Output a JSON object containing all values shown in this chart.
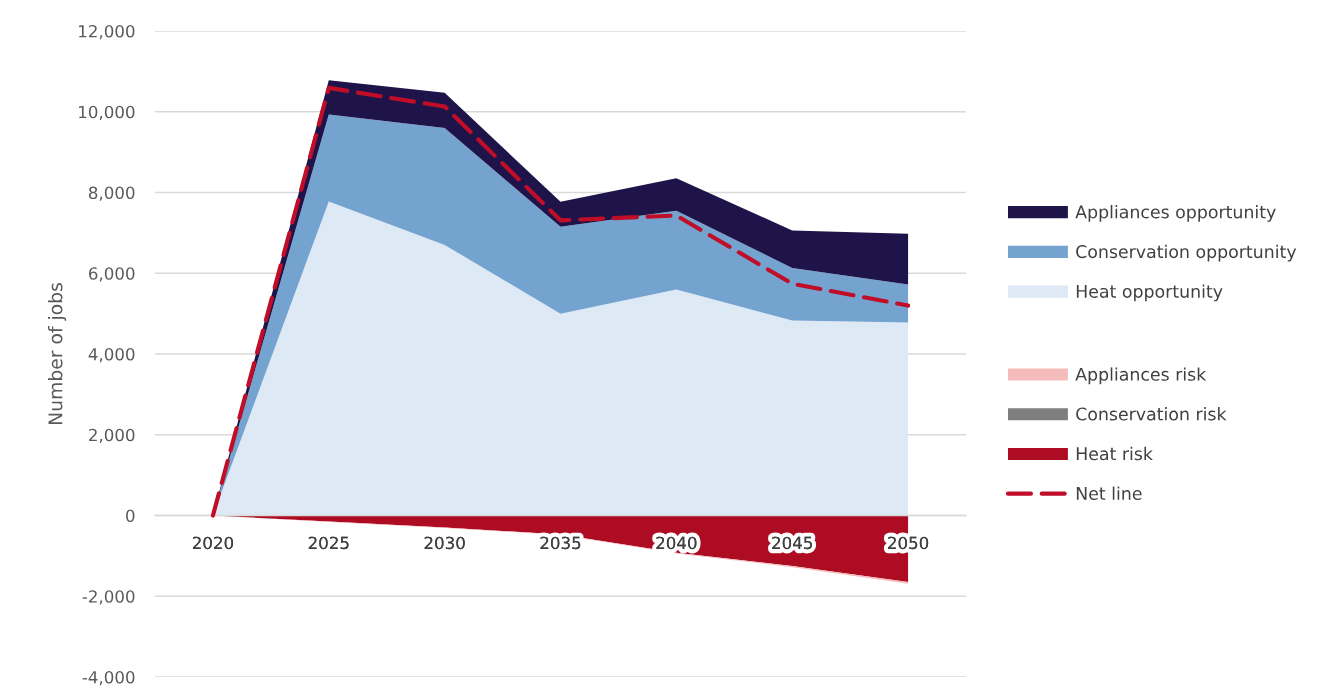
{
  "chart_data": [
    {
      "type": "area",
      "stacked": true,
      "ylabel": "Number of jobs",
      "categories": [
        "2020",
        "2025",
        "2030",
        "2035",
        "2040",
        "2045",
        "2050"
      ],
      "series": [
        {
          "name": "Heat opportunity",
          "color": "#dde9f5",
          "values": [
            0,
            7780,
            6700,
            5000,
            5600,
            4830,
            4780
          ]
        },
        {
          "name": "Conservation opportunity",
          "color": "#75a3d0",
          "values": [
            0,
            2150,
            2900,
            2150,
            1950,
            1300,
            940
          ]
        },
        {
          "name": "Appliances opportunity",
          "color": "#1f1449",
          "values": [
            0,
            850,
            870,
            620,
            800,
            930,
            1260
          ]
        }
      ],
      "ylim": [
        -4000,
        12000
      ],
      "yticks": [
        {
          "value": -4000,
          "label": "-4,000"
        },
        {
          "value": -2000,
          "label": "-2,000"
        },
        0,
        {
          "value": 2000,
          "label": "2,000"
        },
        {
          "value": 4000,
          "label": "4,000"
        },
        {
          "value": 6000,
          "label": "6,000"
        },
        {
          "value": 8000,
          "label": "8,000"
        },
        {
          "value": 10000,
          "label": "10,000"
        },
        {
          "value": 12000,
          "label": "12,000"
        }
      ],
      "tick_labels": "y",
      "grid": "y",
      "legend": "right"
    },
    {
      "type": "area",
      "stacked": true,
      "categories": [
        "2020",
        "2025",
        "2030",
        "2035",
        "2040",
        "2045",
        "2050"
      ],
      "series": [
        {
          "name": "Heat risk",
          "color": "#ad0c22",
          "values": [
            0,
            -150,
            -300,
            -470,
            -920,
            -1250,
            -1650
          ]
        },
        {
          "name": "Conservation risk",
          "color": "#7f7f7f",
          "values": [
            null,
            null,
            null,
            null,
            null,
            null,
            null
          ]
        },
        {
          "name": "Appliances risk",
          "color": "#f6bcbc",
          "values": [
            0,
            -10,
            -10,
            -10,
            -20,
            -30,
            -40
          ]
        },
        {
          "name": "Net line",
          "type": "line",
          "color": "#c00d28",
          "line_style": "dashed",
          "values": [
            0,
            10590,
            10130,
            7310,
            7430,
            5740,
            5200
          ]
        }
      ],
      "ylim": [
        -4000,
        12000
      ],
      "tick_labels": "x",
      "legend": "right"
    }
  ]
}
